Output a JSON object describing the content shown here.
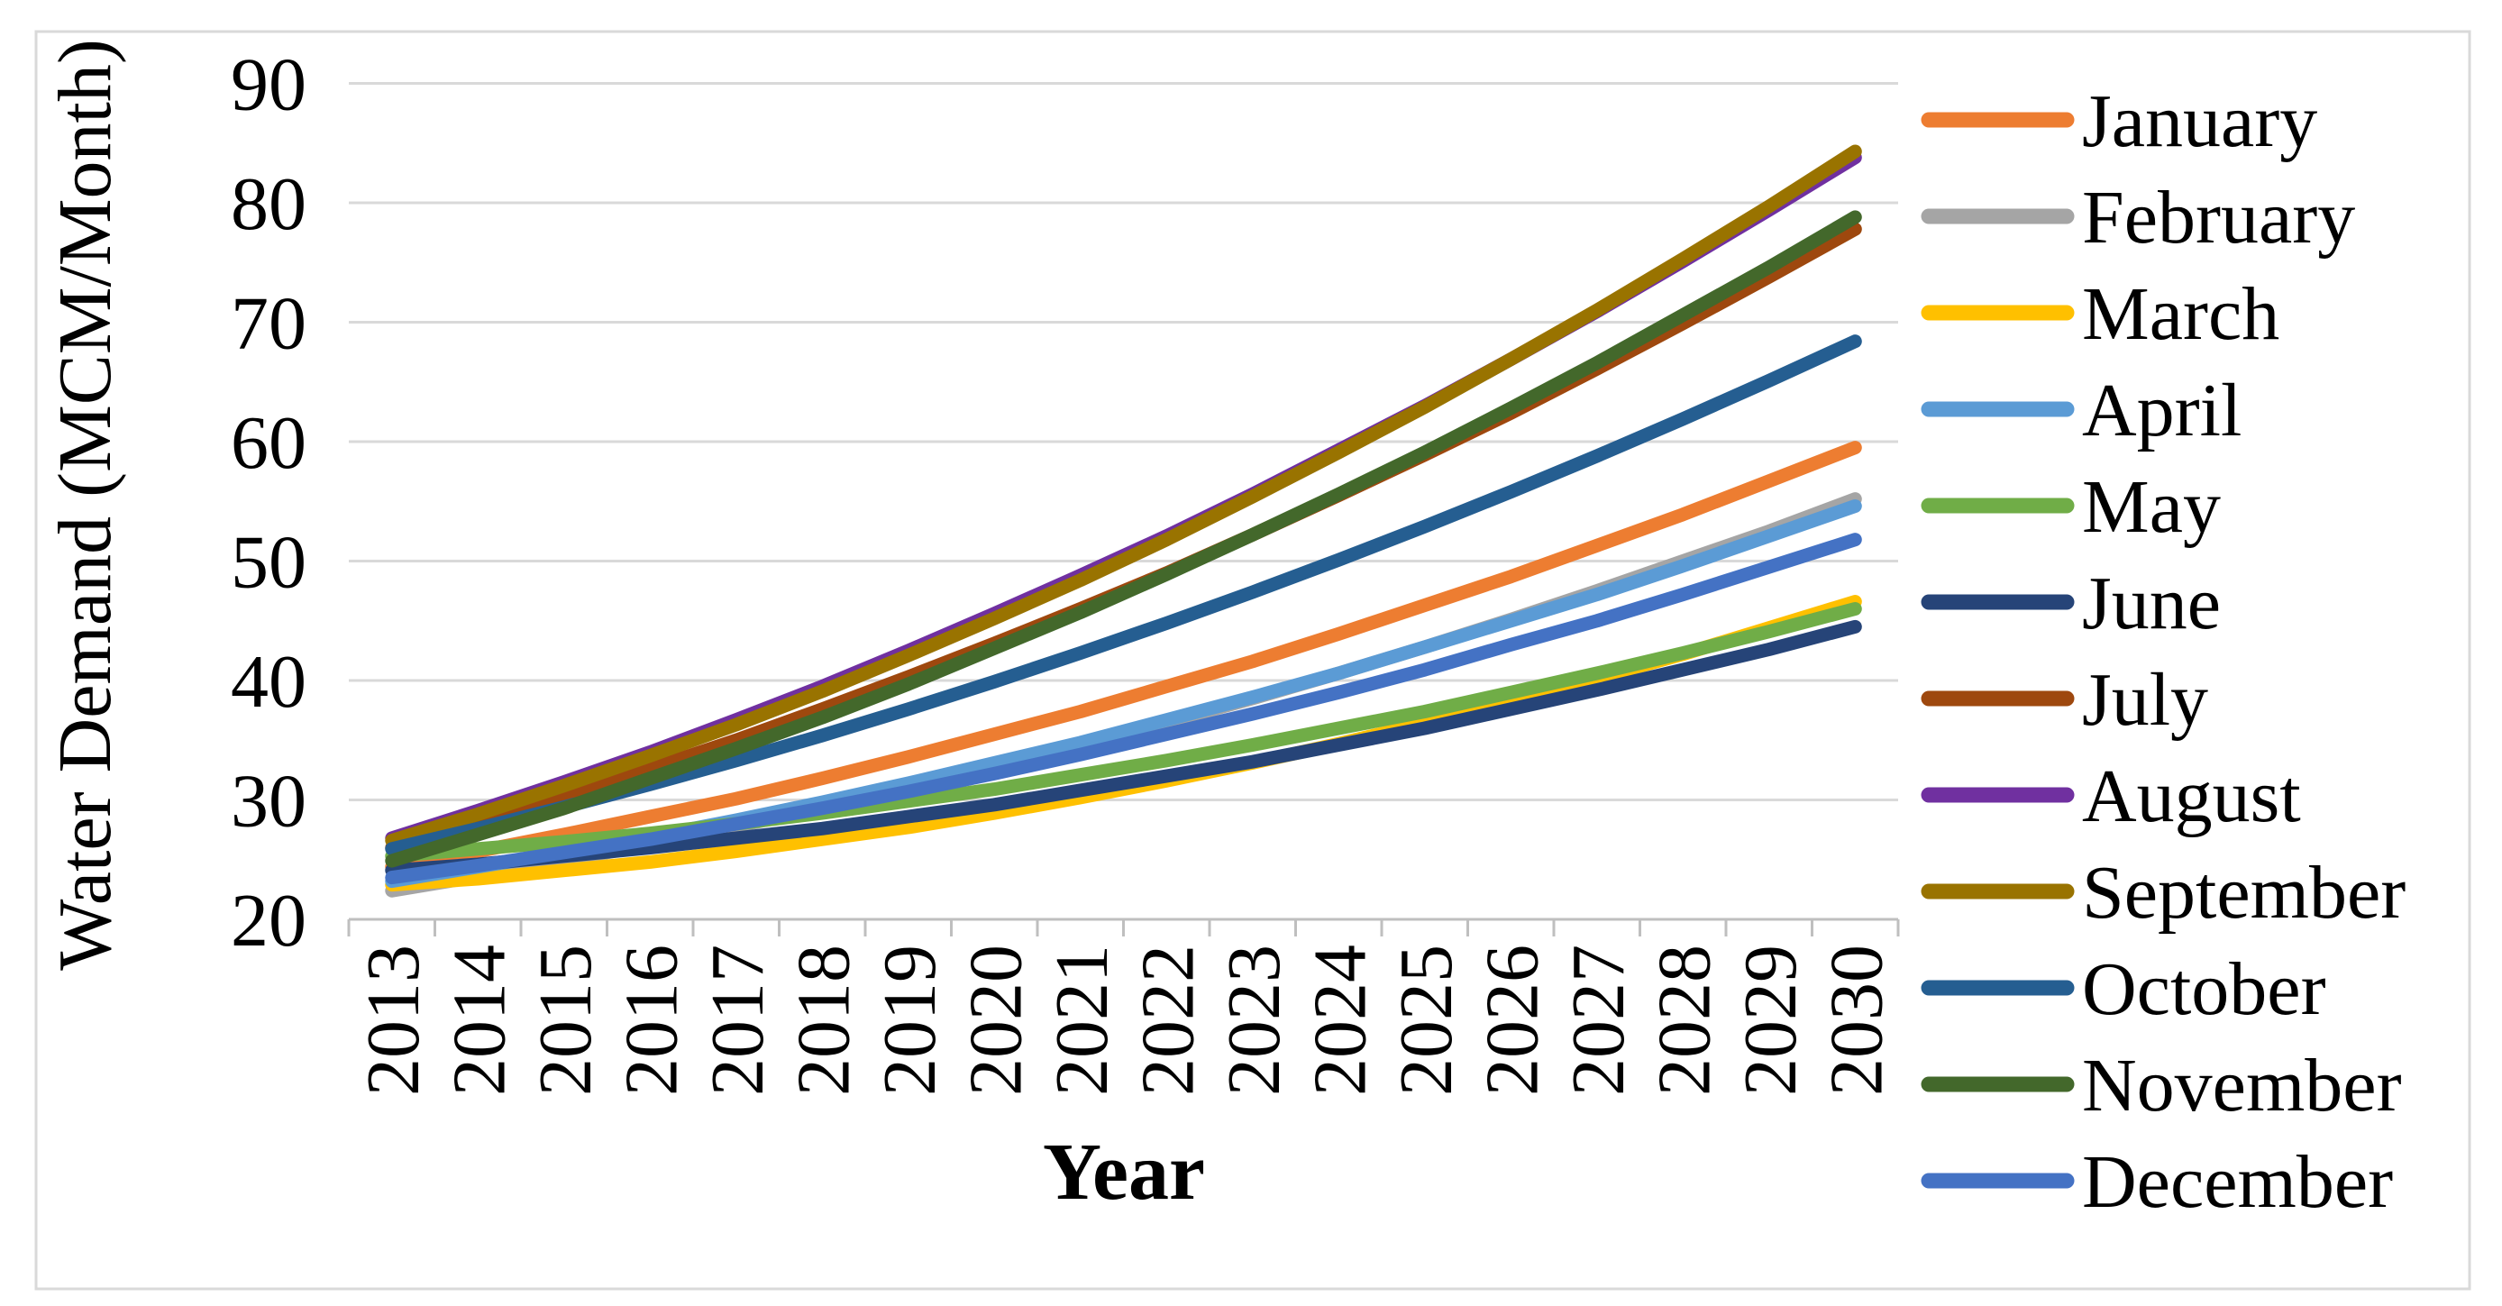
{
  "figure": {
    "background": "#ffffff",
    "border_color": "#d9d9d9",
    "gridline_color": "#d9d9d9",
    "axis_line_color": "#bfbfbf",
    "text_color": "#000000"
  },
  "chart_data": {
    "type": "line",
    "title": "",
    "xlabel": "Year",
    "ylabel": "Water Demand (MCM/Month)",
    "ylim": [
      20,
      90
    ],
    "yticks": [
      20,
      30,
      40,
      50,
      60,
      70,
      80,
      90
    ],
    "grid": true,
    "legend_position": "right",
    "x": [
      2013,
      2014,
      2015,
      2016,
      2017,
      2018,
      2019,
      2020,
      2021,
      2022,
      2023,
      2024,
      2025,
      2026,
      2027,
      2028,
      2029,
      2030
    ],
    "series": [
      {
        "name": "January",
        "color": "#ED7D31",
        "values": [
          24.4,
          25.7,
          27.1,
          28.6,
          30.1,
          31.8,
          33.6,
          35.5,
          37.4,
          39.5,
          41.6,
          43.9,
          46.3,
          48.7,
          51.3,
          53.9,
          56.7,
          59.5
        ]
      },
      {
        "name": "February",
        "color": "#A5A5A5",
        "values": [
          22.4,
          23.6,
          24.9,
          26.3,
          27.8,
          29.3,
          31.0,
          32.7,
          34.6,
          36.5,
          38.5,
          40.6,
          42.8,
          45.1,
          47.5,
          50.0,
          52.5,
          55.2
        ]
      },
      {
        "name": "March",
        "color": "#FFC000",
        "values": [
          22.9,
          23.4,
          24.1,
          24.8,
          25.7,
          26.7,
          27.7,
          28.9,
          30.2,
          31.6,
          33.1,
          34.7,
          36.4,
          38.3,
          40.2,
          42.2,
          44.4,
          46.6
        ]
      },
      {
        "name": "April",
        "color": "#5B9BD5",
        "values": [
          23.2,
          24.4,
          25.6,
          26.9,
          28.3,
          29.8,
          31.4,
          33.1,
          34.8,
          36.7,
          38.6,
          40.6,
          42.8,
          45.0,
          47.2,
          49.6,
          52.1,
          54.6
        ]
      },
      {
        "name": "May",
        "color": "#70AD47",
        "values": [
          25.3,
          25.9,
          26.5,
          27.2,
          28.0,
          28.9,
          29.9,
          30.9,
          32.1,
          33.3,
          34.6,
          36.0,
          37.4,
          39.0,
          40.6,
          42.3,
          44.1,
          46.0
        ]
      },
      {
        "name": "June",
        "color": "#264478",
        "values": [
          24.1,
          24.6,
          25.3,
          26.0,
          26.8,
          27.6,
          28.6,
          29.6,
          30.8,
          32.0,
          33.2,
          34.6,
          36.0,
          37.6,
          39.2,
          40.9,
          42.6,
          44.5
        ]
      },
      {
        "name": "July",
        "color": "#9E480E",
        "values": [
          26.0,
          28.1,
          30.3,
          32.6,
          35.0,
          37.6,
          40.3,
          43.1,
          46.0,
          49.0,
          52.2,
          55.5,
          58.9,
          62.4,
          66.1,
          69.9,
          73.8,
          77.8
        ]
      },
      {
        "name": "August",
        "color": "#7030A0",
        "values": [
          26.8,
          29.1,
          31.5,
          34.0,
          36.7,
          39.5,
          42.5,
          45.6,
          48.8,
          52.1,
          55.6,
          59.3,
          63.0,
          66.9,
          70.9,
          75.1,
          79.4,
          83.8
        ]
      },
      {
        "name": "September",
        "color": "#997300",
        "values": [
          26.6,
          28.8,
          31.2,
          33.7,
          36.3,
          39.1,
          42.1,
          45.2,
          48.4,
          51.8,
          55.4,
          59.1,
          62.9,
          66.9,
          71.0,
          75.3,
          79.7,
          84.3
        ]
      },
      {
        "name": "October",
        "color": "#255E91",
        "values": [
          25.9,
          27.6,
          29.4,
          31.3,
          33.3,
          35.4,
          37.6,
          39.9,
          42.3,
          44.8,
          47.4,
          50.1,
          52.9,
          55.8,
          58.8,
          61.9,
          65.1,
          68.4
        ]
      },
      {
        "name": "November",
        "color": "#43682B",
        "values": [
          24.9,
          27.1,
          29.3,
          31.8,
          34.3,
          36.9,
          39.7,
          42.7,
          45.7,
          48.9,
          52.2,
          55.6,
          59.1,
          62.8,
          66.6,
          70.6,
          74.6,
          78.8
        ]
      },
      {
        "name": "December",
        "color": "#4472C4",
        "values": [
          23.5,
          24.5,
          25.6,
          26.7,
          28.0,
          29.3,
          30.7,
          32.2,
          33.8,
          35.5,
          37.2,
          39.0,
          40.9,
          43.0,
          45.0,
          47.2,
          49.5,
          51.8
        ]
      }
    ]
  }
}
